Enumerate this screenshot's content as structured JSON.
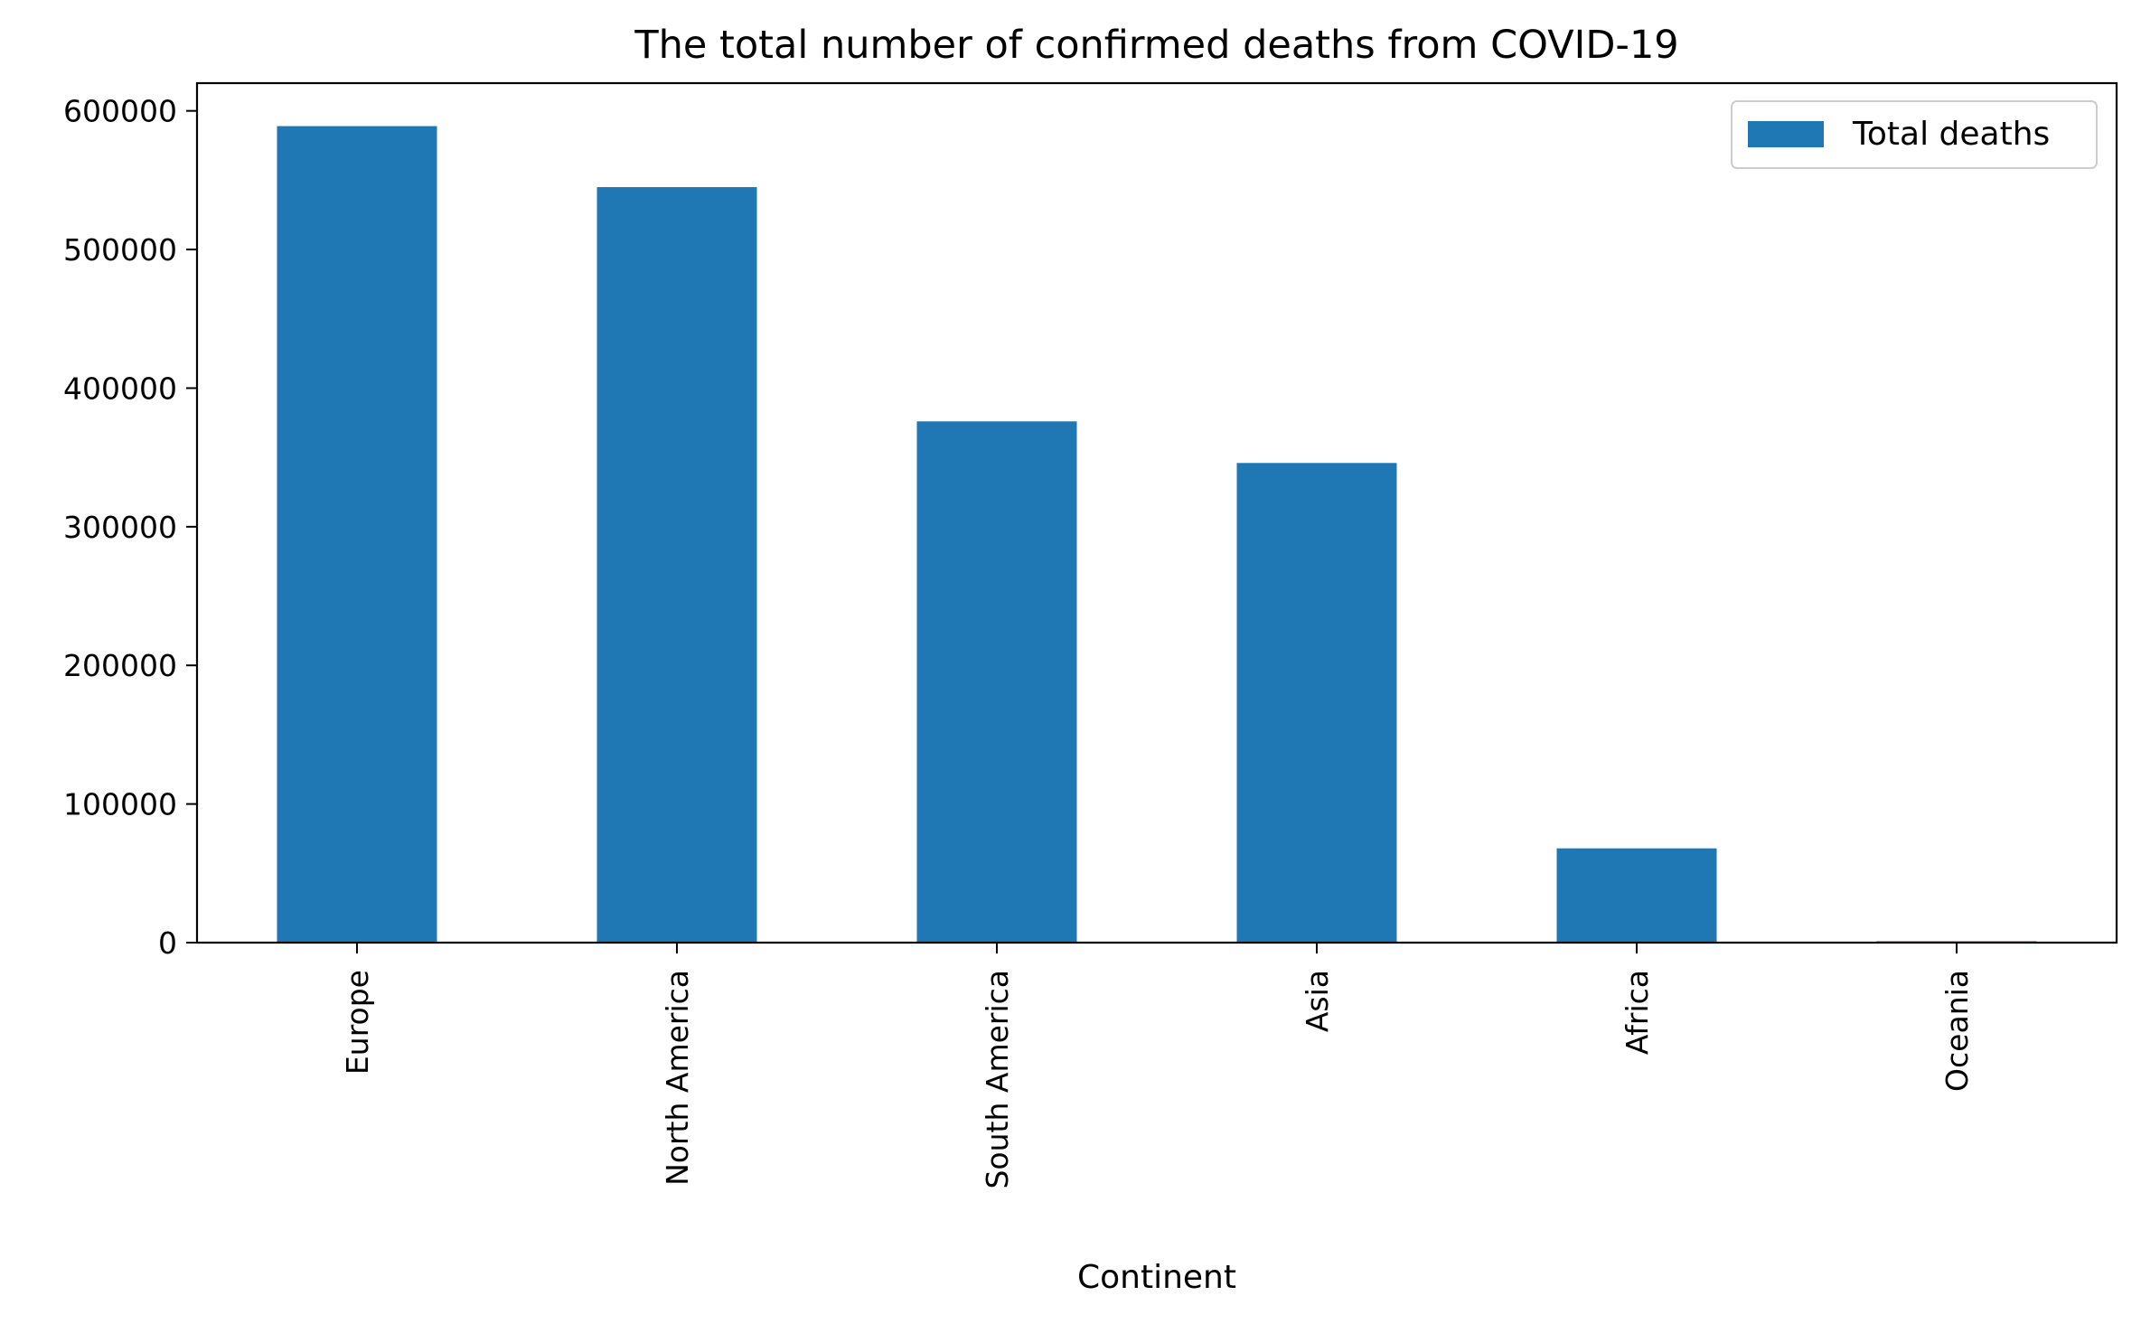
{
  "chart_data": {
    "type": "bar",
    "title": "The total number of confirmed deaths from COVID-19",
    "xlabel": "Continent",
    "ylabel": "",
    "categories": [
      "Europe",
      "North America",
      "South America",
      "Asia",
      "Africa",
      "Oceania"
    ],
    "series": [
      {
        "name": "Total deaths",
        "values": [
          589000,
          545000,
          376000,
          346000,
          68000,
          1000
        ]
      }
    ],
    "ylim": [
      0,
      620000
    ],
    "yticks": [
      "0",
      "100000",
      "200000",
      "300000",
      "400000",
      "500000",
      "600000"
    ],
    "grid": false,
    "legend": "top-right",
    "colors": {
      "bar": "#1f77b4"
    }
  }
}
